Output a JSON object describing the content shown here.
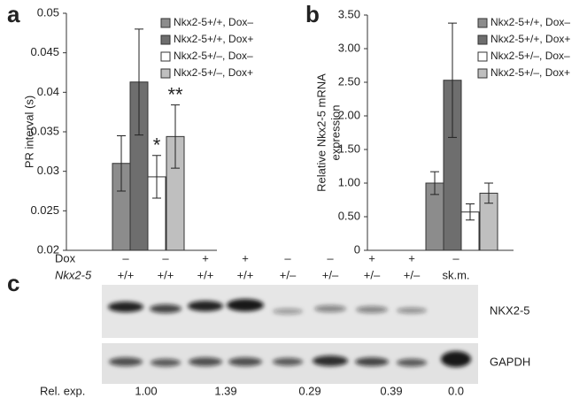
{
  "chart_data": [
    {
      "type": "bar",
      "label": "a",
      "ylabel": [
        "PR interval (s)"
      ],
      "ylim": [
        0.02,
        0.05
      ],
      "yticks": [
        0.02,
        0.025,
        0.03,
        0.035,
        0.04,
        0.045,
        0.05
      ],
      "series": [
        {
          "name": "Nkx2-5+/+, Dox–",
          "color": "#8c8c8c",
          "values": [
            0.031
          ],
          "errors": [
            0.0035
          ]
        },
        {
          "name": "Nkx2-5+/+, Dox+",
          "color": "#6e6e6e",
          "values": [
            0.0413
          ],
          "errors": [
            0.0067
          ]
        },
        {
          "name": "Nkx2-5+/–, Dox–",
          "color": "#ffffff",
          "values": [
            0.0293
          ],
          "errors": [
            0.0027
          ]
        },
        {
          "name": "Nkx2-5+/–, Dox+",
          "color": "#bfbfbf",
          "values": [
            0.0344
          ],
          "errors": [
            0.004
          ]
        }
      ],
      "annotations": [
        "*",
        "**"
      ]
    },
    {
      "type": "bar",
      "label": "b",
      "ylabel": [
        "Relative Nkx2-5 mRNA",
        "expression"
      ],
      "ylim": [
        0,
        3.5
      ],
      "yticks": [
        0,
        {
          "value": 0.5,
          "label": "0.50"
        },
        {
          "value": 1,
          "label": "1.00"
        },
        {
          "value": 1.5,
          "label": "1.50"
        },
        {
          "value": 2,
          "label": "2.00"
        },
        {
          "value": 2.5,
          "label": "2.50"
        },
        {
          "value": 3,
          "label": "3.00"
        },
        {
          "value": 3.5,
          "label": "3.50"
        }
      ],
      "series": [
        {
          "name": "Nkx2-5+/+, Dox–",
          "color": "#8c8c8c",
          "values": [
            1.0
          ],
          "errors": [
            0.17
          ]
        },
        {
          "name": "Nkx2-5+/+, Dox+",
          "color": "#6e6e6e",
          "values": [
            2.53
          ],
          "errors": [
            0.85
          ]
        },
        {
          "name": "Nkx2-5+/–, Dox–",
          "color": "#ffffff",
          "values": [
            0.57
          ],
          "errors": [
            0.12
          ]
        },
        {
          "name": "Nkx2-5+/–, Dox+",
          "color": "#bfbfbf",
          "values": [
            0.85
          ],
          "errors": [
            0.15
          ]
        }
      ]
    }
  ],
  "blot": {
    "label": "c",
    "dox_label": "Dox",
    "genotype_label": "Nkx2-5",
    "dox": [
      "–",
      "–",
      "+",
      "+",
      "–",
      "–",
      "+",
      "+",
      "–"
    ],
    "genotype": [
      "+/+",
      "+/+",
      "+/+",
      "+/+",
      "+/–",
      "+/–",
      "+/–",
      "+/–",
      "sk.m."
    ],
    "bands": [
      "NKX2-5",
      "GAPDH"
    ],
    "rel_label": "Rel. exp.",
    "rel_values": [
      "1.00",
      "1.39",
      "0.29",
      "0.39",
      "0.0"
    ]
  }
}
